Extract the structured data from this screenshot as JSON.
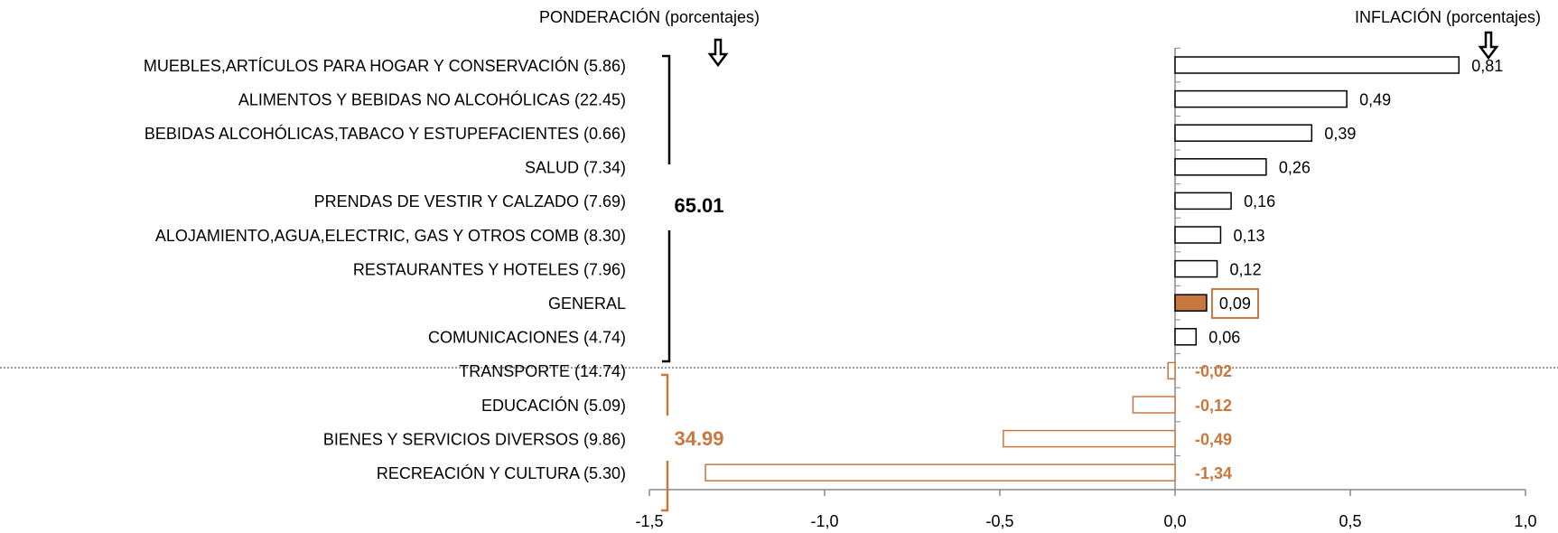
{
  "chart_data": {
    "type": "barh",
    "annotations": {
      "left_title": "PONDERACIÓN (porcentajes)",
      "right_title": "INFLACIÓN (porcentajes)",
      "upper_total": "65.01",
      "lower_total": "34.99"
    },
    "categories": [
      "MUEBLES,ARTÍCULOS PARA HOGAR Y CONSERVACIÓN (5.86)",
      "ALIMENTOS Y BEBIDAS NO ALCOHÓLICAS (22.45)",
      "BEBIDAS ALCOHÓLICAS,TABACO Y ESTUPEFACIENTES (0.66)",
      "SALUD (7.34)",
      "PRENDAS DE VESTIR Y CALZADO (7.69)",
      "ALOJAMIENTO,AGUA,ELECTRIC, GAS Y OTROS COMB (8.30)",
      "RESTAURANTES Y HOTELES (7.96)",
      "GENERAL",
      "COMUNICACIONES (4.74)",
      "TRANSPORTE (14.74)",
      "EDUCACIÓN (5.09)",
      "BIENES Y SERVICIOS DIVERSOS (9.86)",
      "RECREACIÓN Y CULTURA (5.30)"
    ],
    "values": [
      0.81,
      0.49,
      0.39,
      0.26,
      0.16,
      0.13,
      0.12,
      0.09,
      0.06,
      -0.02,
      -0.12,
      -0.49,
      -1.34
    ],
    "value_labels": [
      "0,81",
      "0,49",
      "0,39",
      "0,26",
      "0,16",
      "0,13",
      "0,12",
      "0,09",
      "0,06",
      "-0,02",
      "-0,12",
      "-0,49",
      "-1,34"
    ],
    "edge_colors": [
      "#000000",
      "#000000",
      "#000000",
      "#000000",
      "#000000",
      "#000000",
      "#000000",
      "#000000",
      "#000000",
      "#c8773e",
      "#c8773e",
      "#c8773e",
      "#c8773e"
    ],
    "fill_colors": [
      "#ffffff",
      "#ffffff",
      "#ffffff",
      "#ffffff",
      "#ffffff",
      "#ffffff",
      "#ffffff",
      "#c8773e",
      "#ffffff",
      "#ffffff",
      "#ffffff",
      "#ffffff",
      "#ffffff"
    ],
    "xlim": [
      -1.5,
      1.0
    ],
    "xticks": [
      {
        "value": -1.5,
        "label": "-1,5"
      },
      {
        "value": -1.0,
        "label": "-1,0"
      },
      {
        "value": -0.5,
        "label": "-0,5"
      },
      {
        "value": 0,
        "label": "0,0"
      },
      {
        "value": 0.5,
        "label": "0,5"
      },
      {
        "value": 1.0,
        "label": "1,0"
      }
    ]
  }
}
